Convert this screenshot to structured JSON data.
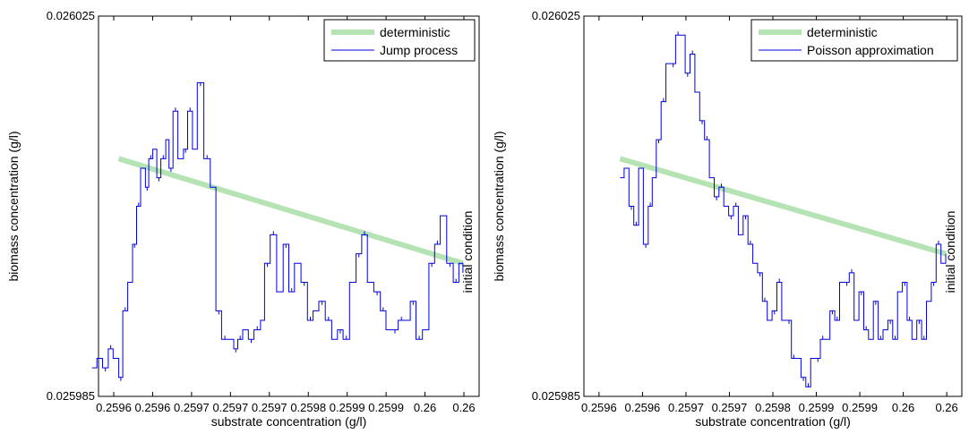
{
  "chart_data": [
    {
      "type": "line",
      "xlabel": "substrate concentration (g/l)",
      "ylabel": "biomass concentration (g/l)",
      "annotation": "initial condition",
      "xticks": [
        "0.2596",
        "0.2596",
        "0.2597",
        "0.2597",
        "0.2597",
        "0.2598",
        "0.2599",
        "0.2599",
        "0.26",
        "0.26"
      ],
      "ytick_top": "0.026025",
      "ytick_bottom": "0.025985",
      "xlim": [
        0.25955,
        0.26002
      ],
      "ylim": [
        0.025985,
        0.026025
      ],
      "legend": {
        "placement": "top-right",
        "entries": [
          "deterministic",
          "Jump process"
        ]
      },
      "series": [
        {
          "name": "deterministic",
          "color": "#b5e3b3",
          "x": [
            0.259575,
            0.26
          ],
          "y": [
            0.02601,
            0.025999
          ]
        },
        {
          "name": "Jump process",
          "color": "#0000dd",
          "x": [
            0.259542,
            0.259548,
            0.259555,
            0.259562,
            0.259568,
            0.259575,
            0.25958,
            0.259586,
            0.259592,
            0.259597,
            0.259602,
            0.259608,
            0.259612,
            0.259617,
            0.259622,
            0.259627,
            0.259633,
            0.259637,
            0.259642,
            0.259648,
            0.259655,
            0.25966,
            0.259666,
            0.259672,
            0.25968,
            0.259688,
            0.259695,
            0.259702,
            0.25971,
            0.259717,
            0.259722,
            0.259728,
            0.259735,
            0.259742,
            0.25975,
            0.259755,
            0.259762,
            0.25977,
            0.259778,
            0.259785,
            0.259792,
            0.2598,
            0.259808,
            0.259815,
            0.259822,
            0.25983,
            0.259838,
            0.259845,
            0.259852,
            0.25986,
            0.259868,
            0.259875,
            0.259882,
            0.25989,
            0.259898,
            0.259905,
            0.259912,
            0.25992,
            0.259928,
            0.259935,
            0.259942,
            0.25995,
            0.259958,
            0.259965,
            0.259972,
            0.25998,
            0.259988,
            0.259995,
            0.26
          ],
          "y": [
            0.025988,
            0.025989,
            0.025988,
            0.02599,
            0.025989,
            0.025987,
            0.025994,
            0.025997,
            0.026001,
            0.026005,
            0.026009,
            0.026007,
            0.02601,
            0.026011,
            0.026008,
            0.02601,
            0.026012,
            0.026009,
            0.026015,
            0.02601,
            0.026011,
            0.026015,
            0.026011,
            0.026018,
            0.02601,
            0.026007,
            0.025994,
            0.025991,
            0.025991,
            0.02599,
            0.025991,
            0.025992,
            0.025991,
            0.025992,
            0.025993,
            0.025999,
            0.026002,
            0.025996,
            0.026001,
            0.025996,
            0.025999,
            0.025997,
            0.025993,
            0.025994,
            0.025995,
            0.025993,
            0.025991,
            0.025992,
            0.025991,
            0.025997,
            0.026,
            0.026002,
            0.025997,
            0.025996,
            0.025994,
            0.025992,
            0.025992,
            0.025993,
            0.025993,
            0.025995,
            0.025991,
            0.025992,
            0.025999,
            0.026001,
            0.026004,
            0.025999,
            0.025997,
            0.025999,
            0.025998
          ]
        }
      ]
    },
    {
      "type": "line",
      "xlabel": "substrate concentration (g/l)",
      "ylabel": "biomass concentration (g/l)",
      "annotation": "initial condition",
      "xticks": [
        "0.2596",
        "0.2596",
        "0.2597",
        "0.2597",
        "0.2598",
        "0.2599",
        "0.2599",
        "0.26",
        "0.26"
      ],
      "ytick_top": "0.026025",
      "ytick_bottom": "0.025985",
      "xlim": [
        0.25955,
        0.26002
      ],
      "ylim": [
        0.025985,
        0.026025
      ],
      "legend": {
        "placement": "top-right",
        "entries": [
          "deterministic",
          "Poisson approximation"
        ]
      },
      "series": [
        {
          "name": "deterministic",
          "color": "#b5e3b3",
          "x": [
            0.259595,
            0.26
          ],
          "y": [
            0.02601,
            0.026
          ]
        },
        {
          "name": "Poisson approximation",
          "color": "#0000dd",
          "x": [
            0.259595,
            0.2596,
            0.259606,
            0.259612,
            0.259618,
            0.259624,
            0.25963,
            0.259635,
            0.25964,
            0.259646,
            0.259652,
            0.259658,
            0.259664,
            0.25967,
            0.259676,
            0.259682,
            0.259688,
            0.259694,
            0.2597,
            0.259706,
            0.259712,
            0.259718,
            0.259724,
            0.25973,
            0.259736,
            0.259742,
            0.259748,
            0.259754,
            0.25976,
            0.259766,
            0.259772,
            0.259778,
            0.259784,
            0.25979,
            0.259796,
            0.259802,
            0.259808,
            0.259814,
            0.25982,
            0.259826,
            0.259832,
            0.259838,
            0.259844,
            0.25985,
            0.259856,
            0.259862,
            0.259868,
            0.259874,
            0.25988,
            0.259886,
            0.259892,
            0.259898,
            0.259904,
            0.25991,
            0.259916,
            0.259922,
            0.259928,
            0.259934,
            0.25994,
            0.259946,
            0.259952,
            0.259958,
            0.259964,
            0.25997,
            0.259976,
            0.259982,
            0.259988,
            0.259994,
            0.26
          ],
          "y": [
            0.026008,
            0.026009,
            0.026005,
            0.026003,
            0.026009,
            0.026001,
            0.026005,
            0.026008,
            0.026012,
            0.026016,
            0.02602,
            0.02602,
            0.026023,
            0.026023,
            0.026019,
            0.026021,
            0.026017,
            0.026014,
            0.026012,
            0.026008,
            0.026006,
            0.026007,
            0.026005,
            0.026004,
            0.026005,
            0.026002,
            0.026004,
            0.026001,
            0.025999,
            0.025998,
            0.025995,
            0.025993,
            0.025994,
            0.025997,
            0.025993,
            0.025993,
            0.025989,
            0.025989,
            0.025987,
            0.025986,
            0.025989,
            0.025989,
            0.025991,
            0.025991,
            0.025994,
            0.025993,
            0.025997,
            0.025997,
            0.025998,
            0.025993,
            0.025996,
            0.025992,
            0.025991,
            0.025995,
            0.025991,
            0.025992,
            0.025993,
            0.025991,
            0.025996,
            0.025997,
            0.025993,
            0.025991,
            0.025993,
            0.025991,
            0.025995,
            0.025997,
            0.026001,
            0.025999,
            0.026
          ]
        }
      ]
    }
  ]
}
